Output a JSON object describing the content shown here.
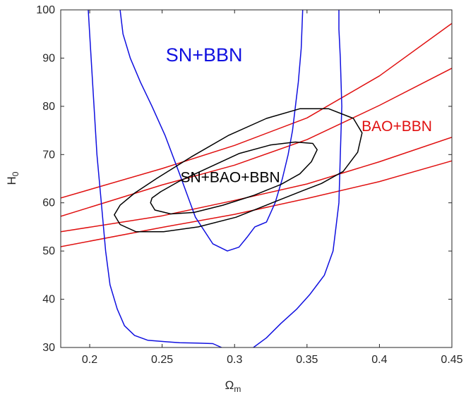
{
  "chart_data": {
    "type": "line",
    "title": "",
    "xlabel": "Ω",
    "xlabel_sub": "m",
    "ylabel": "H",
    "ylabel_sub": "0",
    "xlim": [
      0.18,
      0.45
    ],
    "ylim": [
      30,
      100
    ],
    "xticks": [
      "0.2",
      "0.25",
      "0.3",
      "0.35",
      "0.4",
      "0.45"
    ],
    "yticks": [
      "30",
      "40",
      "50",
      "60",
      "70",
      "80",
      "90",
      "100"
    ],
    "grid": false,
    "legend": "none",
    "annotations": [
      {
        "text": "SN+BBN",
        "x": 0.279,
        "y": 90.4,
        "color": "#1010e0"
      },
      {
        "text": "BAO+BBN",
        "x": 0.412,
        "y": 75.7,
        "color": "#e01010"
      },
      {
        "text": "SN+BAO+BBN",
        "x": 0.297,
        "y": 65.1,
        "color": "#000000"
      }
    ],
    "series": [
      {
        "group": "BAO+BBN",
        "color": "#e01010",
        "x": [
          0.18,
          0.25,
          0.3,
          0.35,
          0.4,
          0.45
        ],
        "y": [
          61.0,
          67.1,
          71.9,
          77.6,
          86.3,
          97.2
        ]
      },
      {
        "group": "BAO+BBN",
        "color": "#e01010",
        "x": [
          0.18,
          0.25,
          0.3,
          0.35,
          0.4,
          0.45
        ],
        "y": [
          57.2,
          63.7,
          67.8,
          73.1,
          80.2,
          87.9
        ]
      },
      {
        "group": "BAO+BBN",
        "color": "#e01010",
        "x": [
          0.18,
          0.25,
          0.3,
          0.35,
          0.4,
          0.45
        ],
        "y": [
          54.0,
          57.3,
          60.5,
          63.9,
          68.5,
          73.6
        ]
      },
      {
        "group": "BAO+BBN",
        "color": "#e01010",
        "x": [
          0.18,
          0.25,
          0.3,
          0.35,
          0.4,
          0.45
        ],
        "y": [
          50.9,
          54.9,
          57.6,
          60.9,
          64.4,
          68.7
        ]
      },
      {
        "group": "SN+BBN",
        "color": "#1010e0",
        "x": [
          0.199,
          0.2,
          0.202,
          0.205,
          0.208,
          0.211,
          0.214,
          0.219,
          0.224,
          0.231,
          0.24,
          0.252,
          0.262,
          0.274,
          0.285,
          0.291
        ],
        "y": [
          100,
          95.0,
          85.0,
          70.0,
          60.0,
          50.0,
          43.0,
          38.0,
          34.5,
          32.5,
          31.5,
          31.2,
          31.0,
          30.9,
          30.8,
          30.0
        ]
      },
      {
        "group": "SN+BBN",
        "color": "#1010e0",
        "x": [
          0.313,
          0.322,
          0.332,
          0.343,
          0.352,
          0.357,
          0.362,
          0.368,
          0.37,
          0.372,
          0.373,
          0.374,
          0.373,
          0.372,
          0.372
        ],
        "y": [
          30.0,
          32.0,
          35.0,
          38.0,
          41.0,
          43.0,
          45.0,
          50.0,
          55.0,
          60.0,
          70.0,
          80.0,
          90.0,
          96.0,
          100
        ]
      },
      {
        "group": "SN+BBN",
        "color": "#1010e0",
        "x": [
          0.221,
          0.223,
          0.228,
          0.235,
          0.243,
          0.252,
          0.262,
          0.273,
          0.285,
          0.295,
          0.303,
          0.309,
          0.314,
          0.318,
          0.322,
          0.328,
          0.333,
          0.337,
          0.34,
          0.342,
          0.344,
          0.346,
          0.347
        ],
        "y": [
          100,
          95.0,
          90.0,
          85.0,
          80.0,
          74.0,
          66.0,
          57.0,
          51.5,
          50.0,
          50.8,
          53.0,
          55.0,
          55.5,
          56.0,
          60.0,
          65.0,
          70.0,
          75.0,
          80.0,
          85.0,
          92.0,
          100
        ]
      },
      {
        "group": "SN+BAO+BBN",
        "color": "#000000",
        "x": [
          0.217,
          0.221,
          0.232,
          0.251,
          0.275,
          0.301,
          0.326,
          0.347,
          0.36,
          0.375,
          0.385,
          0.388,
          0.382,
          0.365,
          0.345,
          0.322,
          0.296,
          0.27,
          0.246,
          0.231,
          0.221,
          0.217
        ],
        "y": [
          57.5,
          55.5,
          54.0,
          54.0,
          55.0,
          57.0,
          60.0,
          62.5,
          64.0,
          66.5,
          70.5,
          74.5,
          77.5,
          79.5,
          79.5,
          77.5,
          74.0,
          69.5,
          65.0,
          62.0,
          59.5,
          57.5
        ]
      },
      {
        "group": "SN+BAO+BBN",
        "color": "#000000",
        "x": [
          0.242,
          0.245,
          0.256,
          0.272,
          0.292,
          0.313,
          0.332,
          0.345,
          0.353,
          0.357,
          0.354,
          0.342,
          0.325,
          0.303,
          0.28,
          0.262,
          0.249,
          0.243,
          0.242
        ],
        "y": [
          60.0,
          58.5,
          57.7,
          58.0,
          59.5,
          61.5,
          63.8,
          66.0,
          68.5,
          71.0,
          72.3,
          72.6,
          72.0,
          70.2,
          67.0,
          64.5,
          62.3,
          61.0,
          60.0
        ]
      }
    ]
  }
}
